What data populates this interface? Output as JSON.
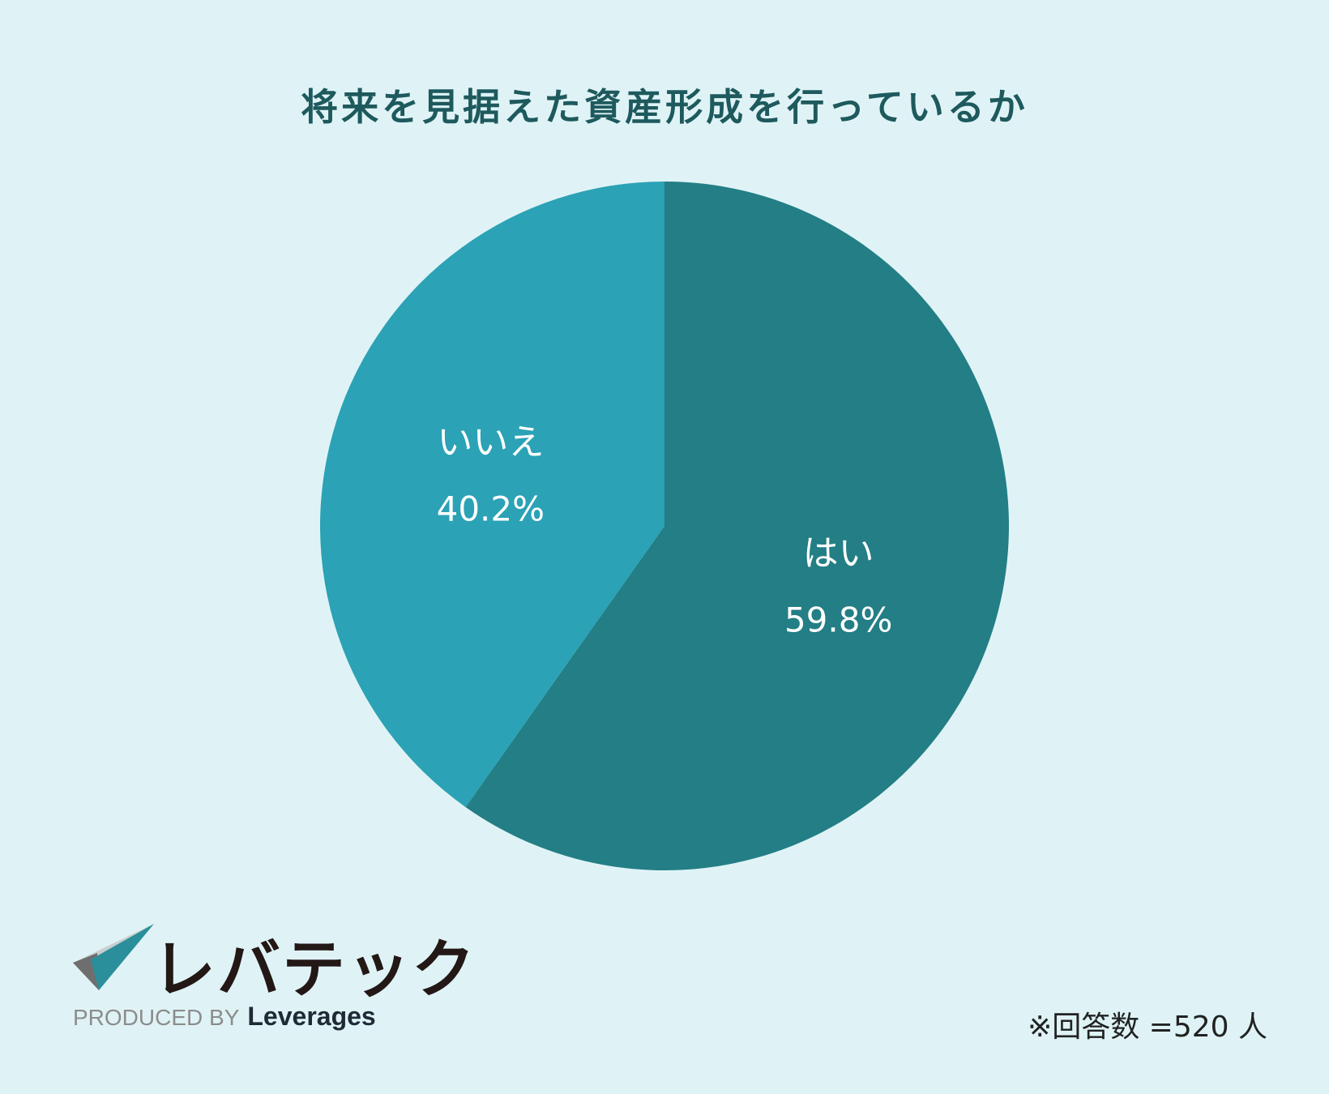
{
  "title": "将来を見据えた資産形成を行っているか",
  "chart_data": {
    "type": "pie",
    "title": "将来を見据えた資産形成を行っているか",
    "slices": [
      {
        "label": "はい",
        "value": 59.8,
        "display": "59.8%",
        "color": "#237e85"
      },
      {
        "label": "いいえ",
        "value": 40.2,
        "display": "40.2%",
        "color": "#2ba2b5"
      }
    ],
    "start": "12 o'clock, clockwise"
  },
  "logo": {
    "name": "レバテック",
    "produced_by": "PRODUCED BY",
    "brand": "Leverages"
  },
  "note": "※回答数 =520 人"
}
